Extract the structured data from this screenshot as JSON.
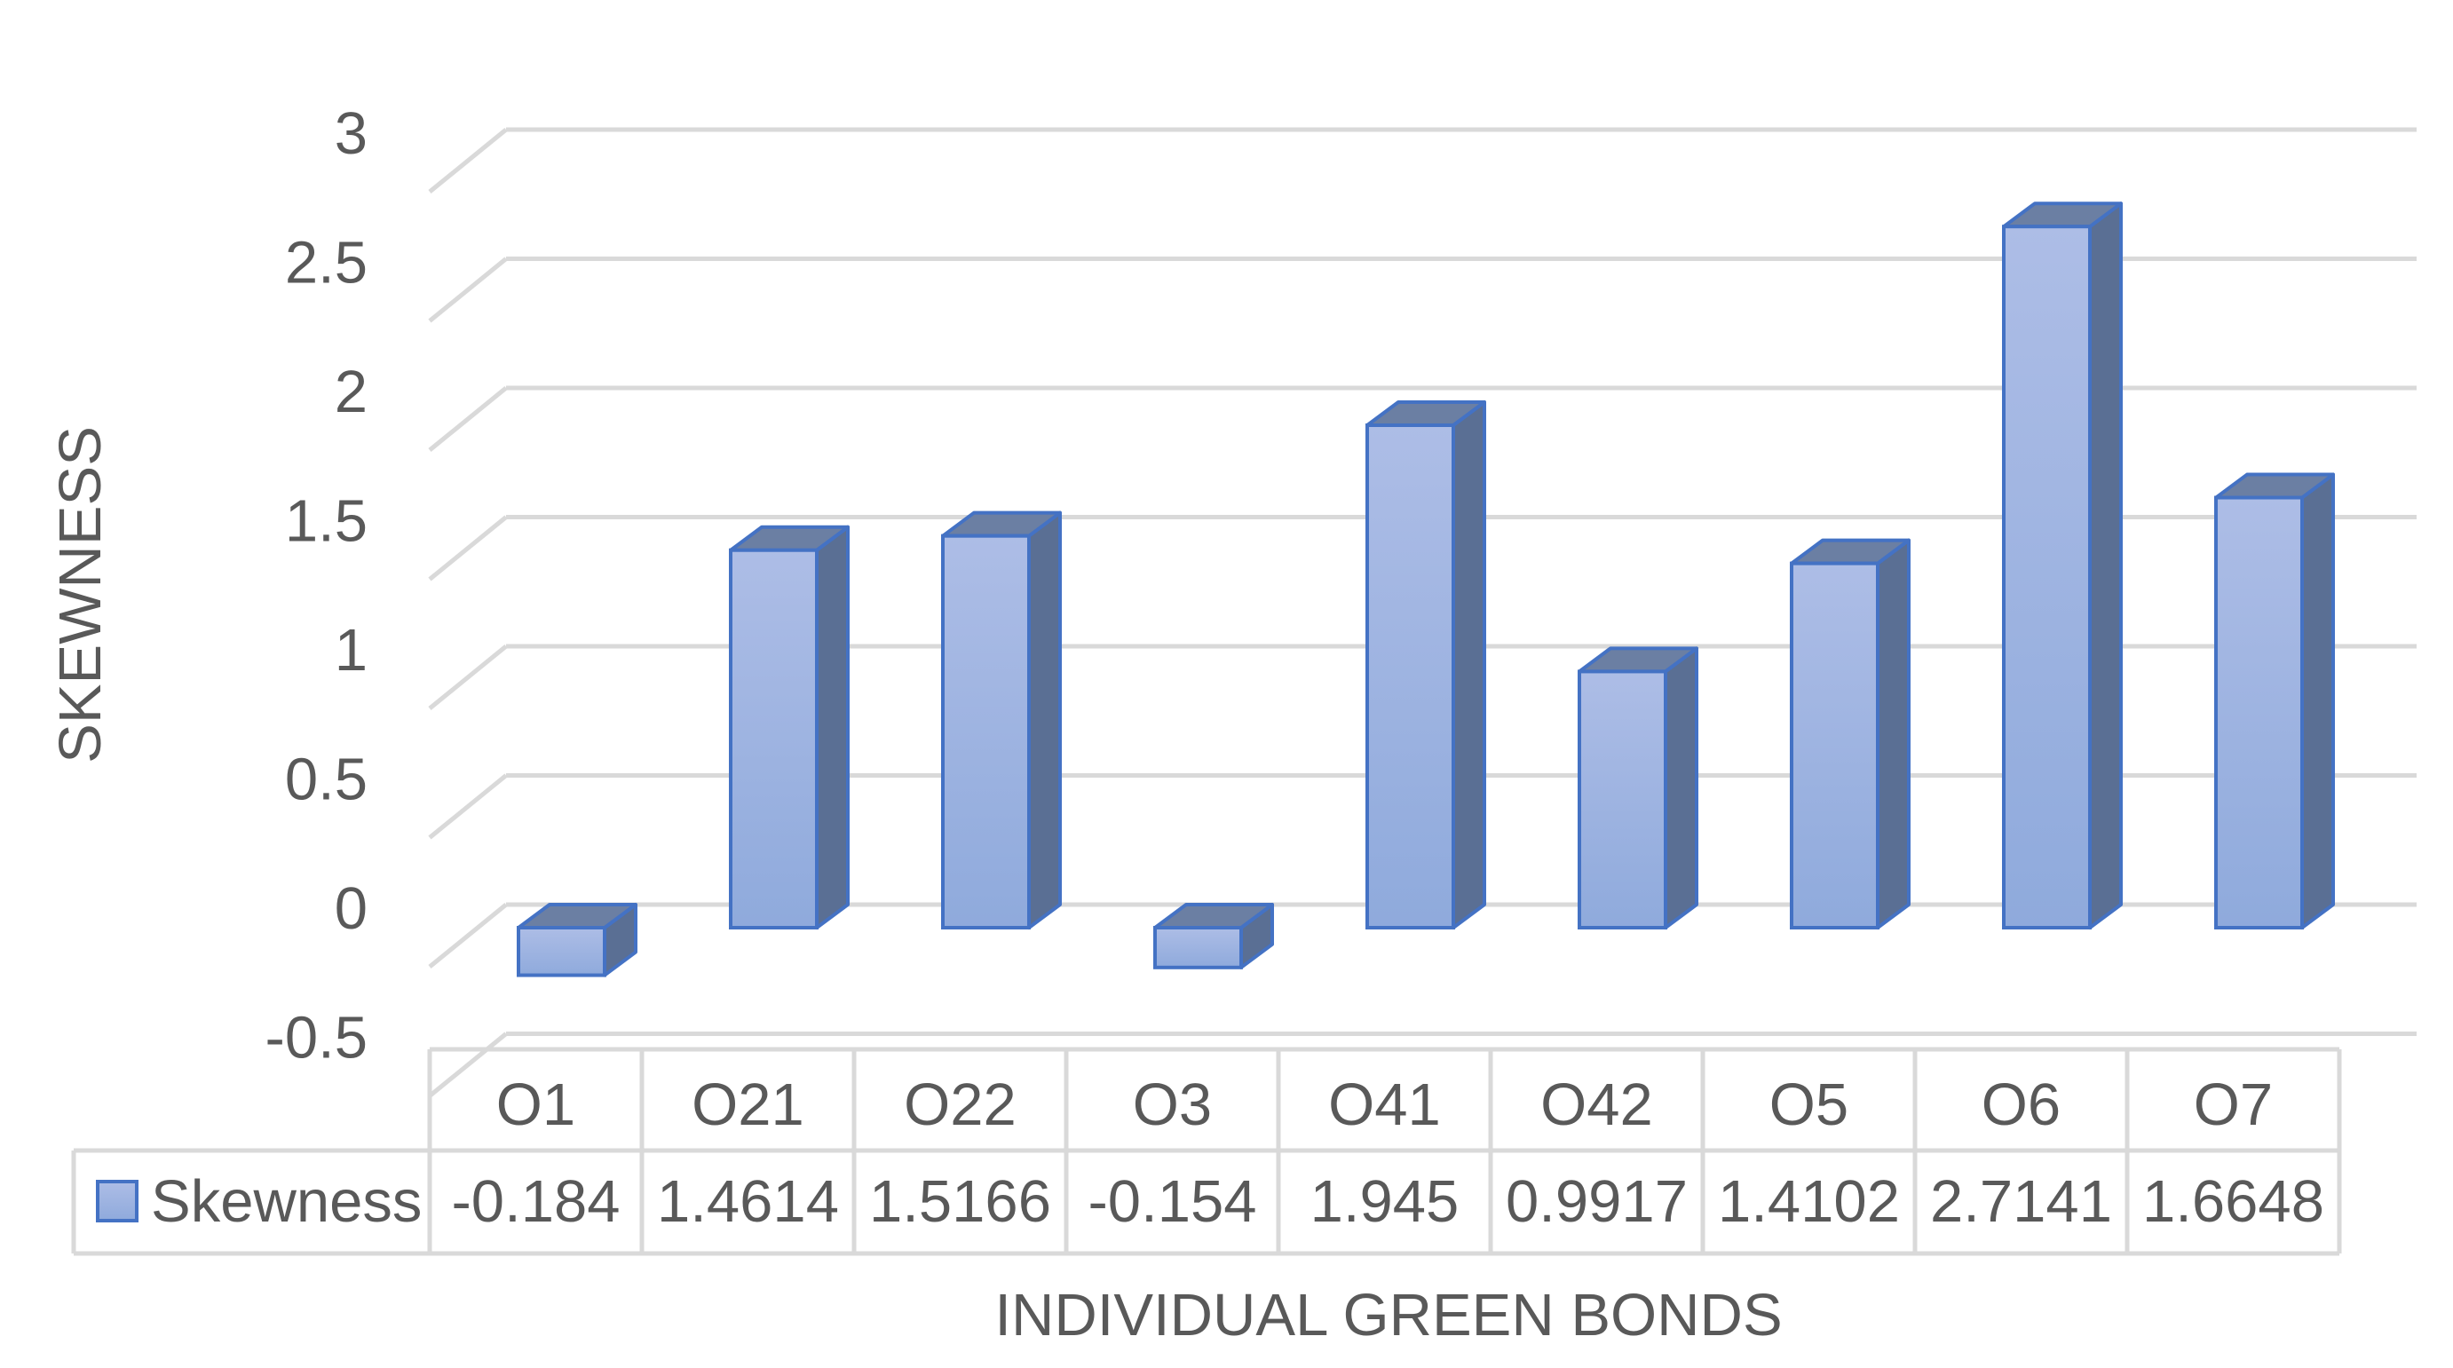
{
  "chart_data": {
    "type": "bar",
    "style": "3d-column-with-data-table",
    "categories": [
      "O1",
      "O21",
      "O22",
      "O3",
      "O41",
      "O42",
      "O5",
      "O6",
      "O7"
    ],
    "series": [
      {
        "name": "Skewness",
        "values": [
          -0.184,
          1.4614,
          1.5166,
          -0.154,
          1.945,
          0.9917,
          1.4102,
          2.7141,
          1.6648
        ],
        "value_labels": [
          "-0.184",
          "1.4614",
          "1.5166",
          "-0.154",
          "1.945",
          "0.9917",
          "1.4102",
          "2.7141",
          "1.6648"
        ],
        "color": "#8faadc",
        "color_light": "#adbde6",
        "border_color": "#4472c4",
        "side_color": "#5a6f94",
        "top_color": "#6b7fa3"
      }
    ],
    "title": "",
    "xlabel": "INDIVIDUAL GREEN BONDS",
    "ylabel": "SKEWNESS",
    "ylim": [
      -0.5,
      3
    ],
    "yticks": [
      -0.5,
      0,
      0.5,
      1,
      1.5,
      2,
      2.5,
      3
    ],
    "ytick_labels": [
      "-0.5",
      "0",
      "0.5",
      "1",
      "1.5",
      "2",
      "2.5",
      "3"
    ],
    "grid": true,
    "legend": "data-table",
    "colors": {
      "text": "#595959",
      "grid": "#d9d9d9",
      "table_border": "#d9d9d9"
    }
  }
}
